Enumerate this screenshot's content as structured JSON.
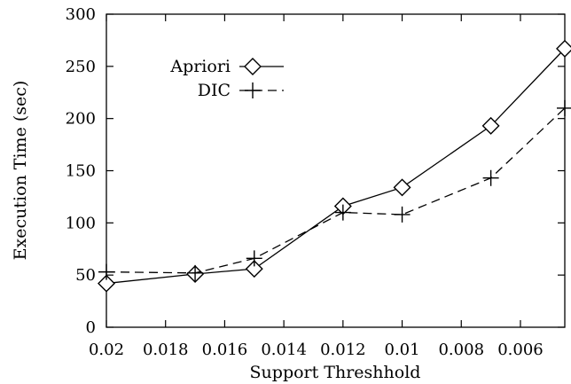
{
  "chart_data": {
    "type": "line",
    "title": "",
    "xlabel": "Support Threshhold",
    "ylabel": "Execution Time (sec)",
    "xlim": [
      0.02,
      0.0045
    ],
    "x_reversed": true,
    "ylim": [
      0,
      300
    ],
    "grid": false,
    "legend_position": "top-left",
    "x_ticks": [
      0.02,
      0.018,
      0.016,
      0.014,
      0.012,
      0.01,
      0.008,
      0.006
    ],
    "x_tick_labels": [
      "0.02",
      "0.018",
      "0.016",
      "0.014",
      "0.012",
      "0.01",
      "0.008",
      "0.006"
    ],
    "y_ticks": [
      0,
      50,
      100,
      150,
      200,
      250,
      300
    ],
    "y_tick_labels": [
      "0",
      "50",
      "100",
      "150",
      "200",
      "250",
      "300"
    ],
    "series": [
      {
        "name": "Apriori",
        "line_style": "solid",
        "marker": "diamond",
        "color": "#000000",
        "x": [
          0.02,
          0.017,
          0.015,
          0.012,
          0.01,
          0.007,
          0.0045
        ],
        "y": [
          42,
          51,
          56,
          116,
          134,
          193,
          267
        ]
      },
      {
        "name": "DIC",
        "line_style": "dashed",
        "marker": "plus",
        "color": "#000000",
        "x": [
          0.02,
          0.017,
          0.015,
          0.012,
          0.01,
          0.007,
          0.0045
        ],
        "y": [
          53,
          52,
          66,
          110,
          108,
          143,
          210
        ]
      }
    ]
  }
}
